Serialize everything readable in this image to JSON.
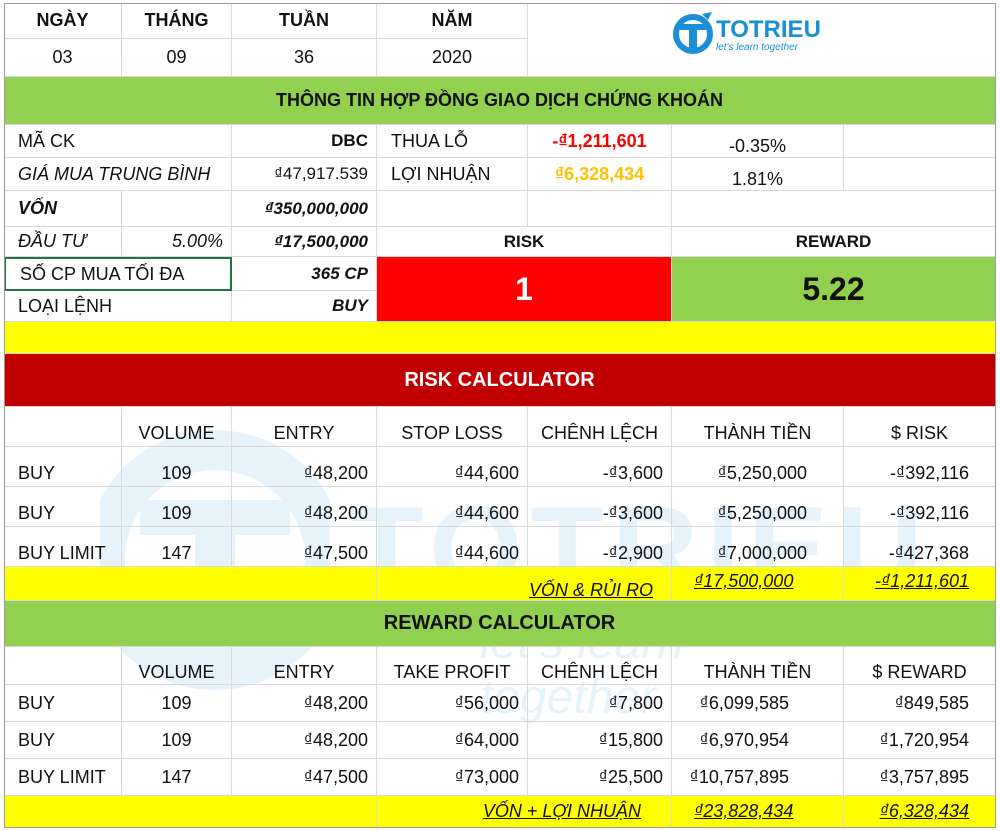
{
  "header": {
    "labels": {
      "day": "NGÀY",
      "month": "THÁNG",
      "week": "TUẦN",
      "year": "NĂM"
    },
    "values": {
      "day": "03",
      "month": "09",
      "week": "36",
      "year": "2020"
    }
  },
  "logo": {
    "name": "TOTRIEU",
    "tagline": "let's learn together"
  },
  "contract": {
    "title": "THÔNG TIN HỢP ĐỒNG GIAO DỊCH CHỨNG KHOÁN",
    "stock_code_label": "MÃ CK",
    "stock_code": "DBC",
    "avg_price_label": "GIÁ MUA TRUNG BÌNH",
    "avg_price": "₫47,917.539",
    "loss_label": "THUA LỖ",
    "loss_value": "-₫1,211,601",
    "loss_pct": "-0.35%",
    "profit_label": "LỢI NHUẬN",
    "profit_value": "₫6,328,434",
    "profit_pct": "1.81%",
    "capital_label": "VỐN",
    "capital": "₫350,000,000",
    "invest_label": "ĐẦU TƯ",
    "invest_pct": "5.00%",
    "invest_value": "₫17,500,000",
    "max_shares_label": "SỐ CP MUA TỐI ĐA",
    "max_shares": "365 CP",
    "order_type_label": "LOẠI LỆNH",
    "order_type": "BUY",
    "risk_label": "RISK",
    "risk_value": "1",
    "reward_label": "REWARD",
    "reward_value": "5.22"
  },
  "risk_calc": {
    "title": "RISK CALCULATOR",
    "headers": [
      "VOLUME",
      "ENTRY",
      "STOP LOSS",
      "CHÊNH LỆCH",
      "THÀNH TIỀN",
      "$ RISK"
    ],
    "rows": [
      {
        "type": "BUY",
        "volume": "109",
        "entry": "₫48,200",
        "stop": "₫44,600",
        "diff": "-₫3,600",
        "amount": "₫5,250,000",
        "risk": "-₫392,116"
      },
      {
        "type": "BUY",
        "volume": "109",
        "entry": "₫48,200",
        "stop": "₫44,600",
        "diff": "-₫3,600",
        "amount": "₫5,250,000",
        "risk": "-₫392,116"
      },
      {
        "type": "BUY LIMIT",
        "volume": "147",
        "entry": "₫47,500",
        "stop": "₫44,600",
        "diff": "-₫2,900",
        "amount": "₫7,000,000",
        "risk": "-₫427,368"
      }
    ],
    "total_label": "VỐN & RỦI RO",
    "total_amount": "₫17,500,000",
    "total_risk": "-₫1,211,601"
  },
  "reward_calc": {
    "title": "REWARD CALCULATOR",
    "headers": [
      "VOLUME",
      "ENTRY",
      "TAKE PROFIT",
      "CHÊNH LỆCH",
      "THÀNH TIỀN",
      "$ REWARD"
    ],
    "rows": [
      {
        "type": "BUY",
        "volume": "109",
        "entry": "₫48,200",
        "tp": "₫56,000",
        "diff": "₫7,800",
        "amount": "₫6,099,585",
        "reward": "₫849,585"
      },
      {
        "type": "BUY",
        "volume": "109",
        "entry": "₫48,200",
        "tp": "₫64,000",
        "diff": "₫15,800",
        "amount": "₫6,970,954",
        "reward": "₫1,720,954"
      },
      {
        "type": "BUY LIMIT",
        "volume": "147",
        "entry": "₫47,500",
        "tp": "₫73,000",
        "diff": "₫25,500",
        "amount": "₫10,757,895",
        "reward": "₫3,757,895"
      }
    ],
    "total_label": "VỐN + LỢI NHUẬN",
    "total_amount": "₫23,828,434",
    "total_reward": "₫6,328,434"
  },
  "colors": {
    "green": "#92d050",
    "yellow": "#ffff00",
    "dark_red": "#c00000",
    "red": "#ff0000",
    "loss_text": "#ff0000",
    "profit_text": "#ffc000",
    "brand": "#1a8fd6"
  }
}
